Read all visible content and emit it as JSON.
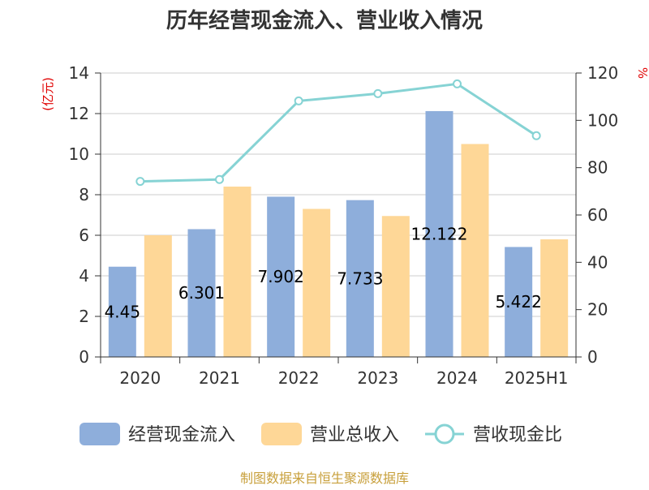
{
  "chart_data": {
    "type": "bar",
    "title": "历年经营现金流入、营业收入情况",
    "categories": [
      "2020",
      "2021",
      "2022",
      "2023",
      "2024",
      "2025H1"
    ],
    "left_axis": {
      "unit": "(亿元)",
      "ylim": [
        0,
        14
      ],
      "ticks": [
        0,
        2,
        4,
        6,
        8,
        10,
        12,
        14
      ]
    },
    "right_axis": {
      "unit": "%",
      "ylim": [
        0,
        120
      ],
      "ticks": [
        0,
        20,
        40,
        60,
        80,
        100,
        120
      ]
    },
    "series": [
      {
        "name": "经营现金流入",
        "type": "bar",
        "axis": "left",
        "color": "#8eaedb",
        "values": [
          4.45,
          6.301,
          7.902,
          7.733,
          12.122,
          5.422
        ],
        "labels": [
          "4.45",
          "6.301",
          "7.902",
          "7.733",
          "12.122",
          "5.422"
        ]
      },
      {
        "name": "营业总收入",
        "type": "bar",
        "axis": "left",
        "color": "#fed797",
        "values": [
          6.0,
          8.4,
          7.3,
          6.95,
          10.5,
          5.8
        ]
      },
      {
        "name": "营收现金比",
        "type": "line",
        "axis": "right",
        "color": "#86d3d4",
        "values": [
          74.2,
          75.0,
          108.2,
          111.3,
          115.4,
          93.5
        ]
      }
    ],
    "grid": true,
    "legend_position": "bottom"
  },
  "source_text": "制图数据来自恒生聚源数据库"
}
